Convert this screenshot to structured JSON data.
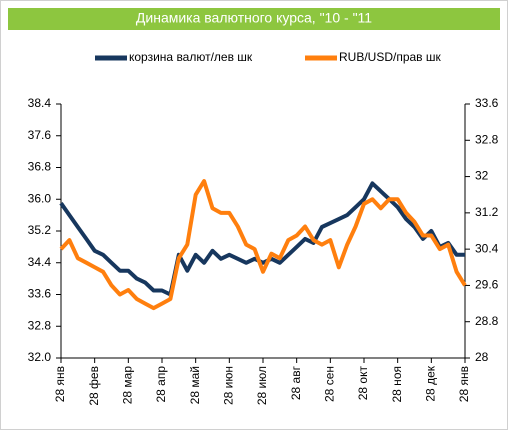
{
  "chart_data": {
    "type": "line",
    "title": "Динамика валютного курса, \"10 - \"11",
    "categories": [
      "28 янв",
      null,
      null,
      null,
      "28 фев",
      null,
      null,
      null,
      "28 мар",
      null,
      null,
      null,
      "28 апр",
      null,
      null,
      null,
      "28 май",
      null,
      null,
      null,
      "28 июн",
      null,
      null,
      null,
      "28 июл",
      null,
      null,
      null,
      "28 авг",
      null,
      null,
      null,
      "28 сен",
      null,
      null,
      null,
      "28 окт",
      null,
      null,
      null,
      "28 ноя",
      null,
      null,
      null,
      "28 дек",
      null,
      null,
      null,
      "28 янв"
    ],
    "series": [
      {
        "name": "корзина валют/лев шк",
        "color": "#17375e",
        "values": [
          35.9,
          35.6,
          35.3,
          35.0,
          34.7,
          34.6,
          34.4,
          34.2,
          34.2,
          34.0,
          33.9,
          33.7,
          33.7,
          33.6,
          34.6,
          34.2,
          34.6,
          34.4,
          34.7,
          34.5,
          34.6,
          34.5,
          34.4,
          34.5,
          34.4,
          34.5,
          34.4,
          34.6,
          34.8,
          35.0,
          34.9,
          35.3,
          35.4,
          35.5,
          35.6,
          35.8,
          36.0,
          36.4,
          36.2,
          36.0,
          35.8,
          35.5,
          35.3,
          35.0,
          35.2,
          34.8,
          34.9,
          34.6,
          34.6
        ]
      },
      {
        "name": "RUB/USD/прав шк",
        "color": "#ff7f0e",
        "axis": "y2",
        "values": [
          30.4,
          30.6,
          30.2,
          30.1,
          30.0,
          29.9,
          29.6,
          29.4,
          29.5,
          29.3,
          29.2,
          29.1,
          29.2,
          29.3,
          30.2,
          30.5,
          31.6,
          31.9,
          31.3,
          31.2,
          31.2,
          30.9,
          30.5,
          30.4,
          29.9,
          30.3,
          30.2,
          30.6,
          30.7,
          30.9,
          30.6,
          30.5,
          30.6,
          30.0,
          30.5,
          30.9,
          31.4,
          31.5,
          31.3,
          31.5,
          31.5,
          31.2,
          31.0,
          30.7,
          30.7,
          30.4,
          30.5,
          29.9,
          29.6
        ]
      }
    ],
    "ylim": [
      32,
      38.4
    ],
    "yticks": [
      {
        "value": 32,
        "label": "32.0"
      },
      32.8,
      33.6,
      34.4,
      35.2,
      {
        "value": 36,
        "label": "36.0"
      },
      36.8,
      37.6,
      38.4
    ],
    "y2lim": [
      28,
      33.6
    ],
    "y2ticks": [
      28,
      28.8,
      29.6,
      30.4,
      31.2,
      32,
      32.8,
      33.6
    ],
    "grid": false,
    "legend": "top"
  }
}
